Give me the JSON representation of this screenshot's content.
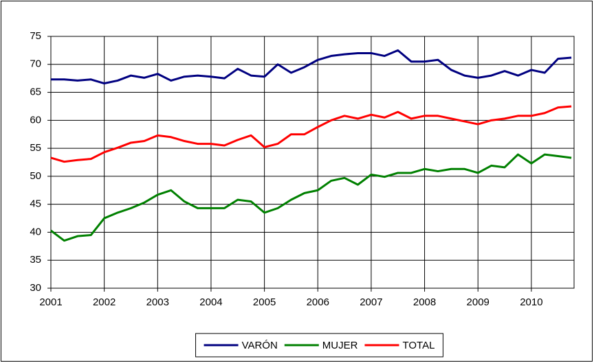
{
  "chart_data": {
    "type": "line",
    "x": [
      2001,
      2001.25,
      2001.5,
      2001.75,
      2002,
      2002.25,
      2002.5,
      2002.75,
      2003,
      2003.25,
      2003.5,
      2003.75,
      2004,
      2004.25,
      2004.5,
      2004.75,
      2005,
      2005.25,
      2005.5,
      2005.75,
      2006,
      2006.25,
      2006.5,
      2006.75,
      2007,
      2007.25,
      2007.5,
      2007.75,
      2008,
      2008.25,
      2008.5,
      2008.75,
      2009,
      2009.25,
      2009.5,
      2009.75,
      2010,
      2010.25,
      2010.5,
      2010.75
    ],
    "series": [
      {
        "name": "VARÓN",
        "color": "#000080",
        "values": [
          67.3,
          67.3,
          67.1,
          67.3,
          66.6,
          67.1,
          68.0,
          67.6,
          68.3,
          67.1,
          67.8,
          68.0,
          67.8,
          67.5,
          69.2,
          68.0,
          67.8,
          70.0,
          68.5,
          69.5,
          70.8,
          71.5,
          71.8,
          72.0,
          72.0,
          71.5,
          72.5,
          70.5,
          70.5,
          70.8,
          69.0,
          68.0,
          67.6,
          68.0,
          68.8,
          68.0,
          69.0,
          68.5,
          71.0,
          71.2
        ]
      },
      {
        "name": "MUJER",
        "color": "#008000",
        "values": [
          40.3,
          38.5,
          39.3,
          39.5,
          42.5,
          43.5,
          44.3,
          45.3,
          46.7,
          47.5,
          45.5,
          44.3,
          44.3,
          44.3,
          45.8,
          45.5,
          43.5,
          44.3,
          45.8,
          47.0,
          47.5,
          49.2,
          49.7,
          48.5,
          50.3,
          49.9,
          50.6,
          50.6,
          51.3,
          50.9,
          51.3,
          51.3,
          50.6,
          51.9,
          51.6,
          53.9,
          52.3,
          53.9,
          53.6,
          53.3
        ]
      },
      {
        "name": "TOTAL",
        "color": "#ff0000",
        "values": [
          53.3,
          52.6,
          52.9,
          53.1,
          54.3,
          55.1,
          56.0,
          56.3,
          57.3,
          57.0,
          56.3,
          55.8,
          55.8,
          55.5,
          56.5,
          57.3,
          55.2,
          55.8,
          57.5,
          57.5,
          58.8,
          60.0,
          60.8,
          60.3,
          61.0,
          60.5,
          61.5,
          60.3,
          60.8,
          60.8,
          60.3,
          59.8,
          59.3,
          60.0,
          60.3,
          60.8,
          60.8,
          61.3,
          62.3,
          62.5
        ]
      }
    ],
    "xlim": [
      2001,
      2010.8
    ],
    "xticks": [
      2001,
      2002,
      2003,
      2004,
      2005,
      2006,
      2007,
      2008,
      2009,
      2010
    ],
    "ylim": [
      30,
      75
    ],
    "yticks": [
      30,
      35,
      40,
      45,
      50,
      55,
      60,
      65,
      70,
      75
    ],
    "grid": true,
    "legend": "bottom"
  }
}
